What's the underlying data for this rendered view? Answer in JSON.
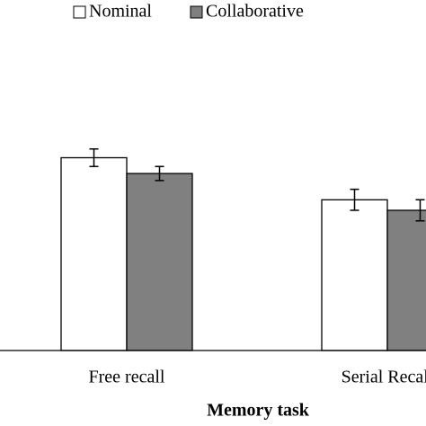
{
  "chart_data": {
    "type": "bar",
    "x_label": "Memory task",
    "categories": [
      "Free recall",
      "Serial Recall"
    ],
    "series": [
      {
        "name": "Nominal",
        "color": "#ffffff",
        "values": [
          55,
          43
        ],
        "errors": [
          2.5,
          3
        ]
      },
      {
        "name": "Collaborative",
        "color": "#808080",
        "values": [
          50.5,
          40
        ],
        "errors": [
          2,
          3
        ]
      }
    ],
    "ylim": [
      0,
      100
    ]
  }
}
